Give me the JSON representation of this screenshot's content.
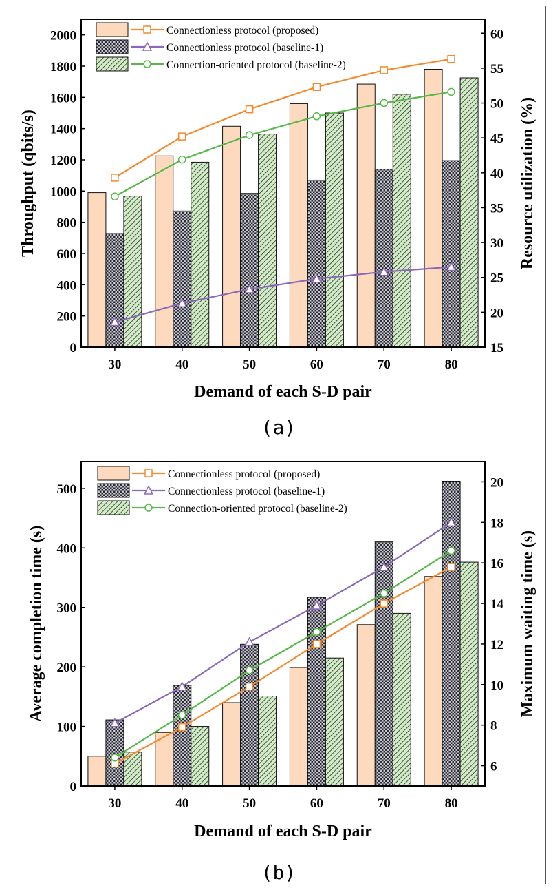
{
  "figure": {
    "caption_a": "(a)",
    "caption_b": "(b)"
  },
  "chart_data": [
    {
      "type": "bar",
      "categories": [
        "30",
        "40",
        "50",
        "60",
        "70",
        "80"
      ],
      "xlabel": "Demand of each S-D pair",
      "ylabel": "Throughput (qbits/s)",
      "y2label": "Resource utilization (%)",
      "ylim": [
        0,
        2100
      ],
      "y2lim": [
        15,
        62
      ],
      "yticks": [
        0,
        200,
        400,
        600,
        800,
        1000,
        1200,
        1400,
        1600,
        1800,
        2000
      ],
      "y2ticks": [
        15,
        20,
        25,
        30,
        35,
        40,
        45,
        50,
        55,
        60
      ],
      "legend_position": "top-left",
      "bar_series": [
        {
          "name": "Connectionless protocol (proposed)",
          "values": [
            990,
            1225,
            1415,
            1560,
            1685,
            1780
          ],
          "color": "#fdd9bd",
          "pattern": "solid"
        },
        {
          "name": "Connectionless protocol (baseline-1)",
          "values": [
            728,
            872,
            985,
            1070,
            1140,
            1195
          ],
          "color": "#2b2b38",
          "pattern": "checker"
        },
        {
          "name": "Connection-oriented protocol (baseline-2)",
          "values": [
            968,
            1185,
            1365,
            1500,
            1620,
            1725
          ],
          "color": "#c9e4bd",
          "pattern": "hatch"
        }
      ],
      "line_series": [
        {
          "name": "Connectionless protocol (proposed)",
          "values": [
            39.3,
            45.2,
            49.1,
            52.3,
            54.7,
            56.3
          ],
          "color": "#f4892d",
          "marker": "square"
        },
        {
          "name": "Connectionless protocol (baseline-1)",
          "values": [
            18.6,
            21.3,
            23.3,
            24.8,
            25.8,
            26.5
          ],
          "color": "#8a6ab8",
          "marker": "triangle"
        },
        {
          "name": "Connection-oriented protocol (baseline-2)",
          "values": [
            36.6,
            41.9,
            45.4,
            48.1,
            50.0,
            51.6
          ],
          "color": "#55b848",
          "marker": "circle"
        }
      ]
    },
    {
      "type": "bar",
      "categories": [
        "30",
        "40",
        "50",
        "60",
        "70",
        "80"
      ],
      "xlabel": "Demand of each S-D pair",
      "ylabel": "Average completion time (s)",
      "y2label": "Maximum waiting time (s)",
      "ylim": [
        0,
        545
      ],
      "y2lim": [
        5,
        21
      ],
      "yticks": [
        0,
        100,
        200,
        300,
        400,
        500
      ],
      "y2ticks": [
        6,
        8,
        10,
        12,
        14,
        16,
        18,
        20
      ],
      "legend_position": "top-left",
      "bar_series": [
        {
          "name": "Connectionless protocol (proposed)",
          "values": [
            50,
            90,
            140,
            199,
            271,
            352
          ],
          "color": "#fdd9bd",
          "pattern": "solid"
        },
        {
          "name": "Connectionless protocol (baseline-1)",
          "values": [
            111,
            169,
            238,
            317,
            410,
            512
          ],
          "color": "#2b2b38",
          "pattern": "checker"
        },
        {
          "name": "Connection-oriented protocol (baseline-2)",
          "values": [
            57,
            100,
            151,
            215,
            290,
            376
          ],
          "color": "#c9e4bd",
          "pattern": "hatch"
        }
      ],
      "line_series": [
        {
          "name": "Connectionless protocol (proposed)",
          "values": [
            6.1,
            7.9,
            9.9,
            12.0,
            14.0,
            15.8
          ],
          "color": "#f4892d",
          "marker": "square"
        },
        {
          "name": "Connectionless protocol (baseline-1)",
          "values": [
            8.1,
            9.9,
            12.1,
            13.9,
            15.8,
            18.0
          ],
          "color": "#8a6ab8",
          "marker": "triangle"
        },
        {
          "name": "Connection-oriented protocol (baseline-2)",
          "values": [
            6.4,
            8.5,
            10.7,
            12.6,
            14.5,
            16.6
          ],
          "color": "#55b848",
          "marker": "circle"
        }
      ]
    }
  ]
}
